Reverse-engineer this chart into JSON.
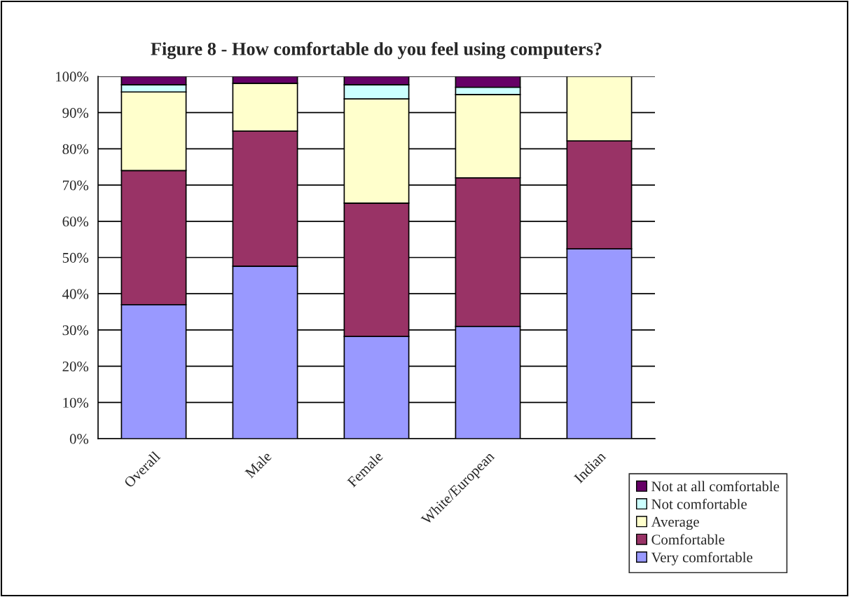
{
  "chart_data": {
    "type": "bar",
    "title": "Figure 8 - How comfortable do you feel using computers?",
    "categories": [
      "Overall",
      "Male",
      "Female",
      "White/European",
      "Indian"
    ],
    "stacked": true,
    "series": [
      {
        "name": "Very comfortable",
        "color": "#9999ff",
        "values": [
          37,
          47.6,
          28.2,
          31,
          52.4
        ]
      },
      {
        "name": "Comfortable",
        "color": "#993366",
        "values": [
          37,
          37.3,
          36.8,
          41,
          29.8
        ]
      },
      {
        "name": "Average",
        "color": "#ffffcc",
        "values": [
          21.7,
          13.2,
          28.8,
          23,
          17.8
        ]
      },
      {
        "name": "Not comfortable",
        "color": "#ccffff",
        "values": [
          2,
          null,
          3.9,
          2,
          null
        ]
      },
      {
        "name": "Not at all comfortable",
        "color": "#660066",
        "values": [
          2.3,
          1.9,
          2.3,
          3,
          null
        ]
      }
    ],
    "ylim": [
      0,
      100
    ],
    "yticks": [
      {
        "value": 0,
        "label": "0%"
      },
      {
        "value": 10,
        "label": "10%"
      },
      {
        "value": 20,
        "label": "20%"
      },
      {
        "value": 30,
        "label": "30%"
      },
      {
        "value": 40,
        "label": "40%"
      },
      {
        "value": 50,
        "label": "50%"
      },
      {
        "value": 60,
        "label": "60%"
      },
      {
        "value": 70,
        "label": "70%"
      },
      {
        "value": 80,
        "label": "80%"
      },
      {
        "value": 90,
        "label": "90%"
      },
      {
        "value": 100,
        "label": "100%"
      }
    ],
    "grid": "y",
    "legend": "bottom right"
  }
}
